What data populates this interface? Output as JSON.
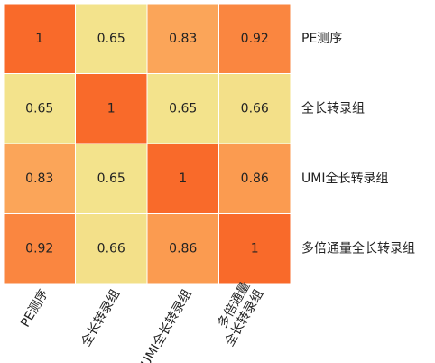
{
  "chart_data": {
    "type": "heatmap",
    "x_categories": [
      [
        "PE测序"
      ],
      [
        "全长转录组"
      ],
      [
        "UMI全长转录组"
      ],
      [
        "多倍通量",
        "全长转录组"
      ]
    ],
    "y_categories": [
      "PE测序",
      "全长转录组",
      "UMI全长转录组",
      "多倍通量全长转录组"
    ],
    "values": [
      [
        1,
        0.65,
        0.83,
        0.92
      ],
      [
        0.65,
        1,
        0.65,
        0.66
      ],
      [
        0.83,
        0.65,
        1,
        0.86
      ],
      [
        0.92,
        0.66,
        0.86,
        1
      ]
    ],
    "colors": [
      "#f3e38c",
      "#fba75a",
      "#f96a2a"
    ]
  }
}
